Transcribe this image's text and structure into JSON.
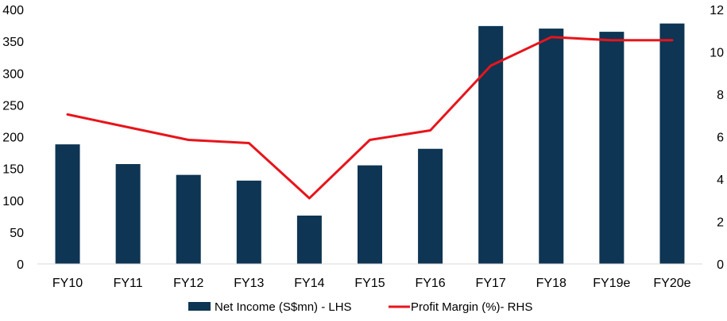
{
  "chart_data": {
    "type": "bar",
    "categories": [
      "FY10",
      "FY11",
      "FY12",
      "FY13",
      "FY14",
      "FY15",
      "FY16",
      "FY17",
      "FY18",
      "FY19e",
      "FY20e"
    ],
    "series": [
      {
        "name": "Net Income (S$mn) - LHS",
        "type": "bar",
        "axis": "left",
        "color": "#0e3553",
        "values": [
          188,
          157,
          140,
          131,
          76,
          155,
          181,
          374,
          370,
          365,
          378
        ]
      },
      {
        "name": "Profit Margin (%)- RHS",
        "type": "line",
        "axis": "right",
        "color": "#e8141b",
        "values": [
          7.05,
          6.45,
          5.85,
          5.7,
          3.1,
          5.85,
          6.3,
          9.35,
          10.7,
          10.55,
          10.55
        ]
      }
    ],
    "y_left": {
      "ylim": [
        0,
        400
      ],
      "ticks": [
        0,
        50,
        100,
        150,
        200,
        250,
        300,
        350,
        400
      ]
    },
    "y_right": {
      "ylim": [
        0,
        12
      ],
      "ticks": [
        0,
        2,
        4,
        6,
        8,
        10,
        12
      ]
    },
    "legend": {
      "position": "bottom"
    },
    "grid": false
  }
}
